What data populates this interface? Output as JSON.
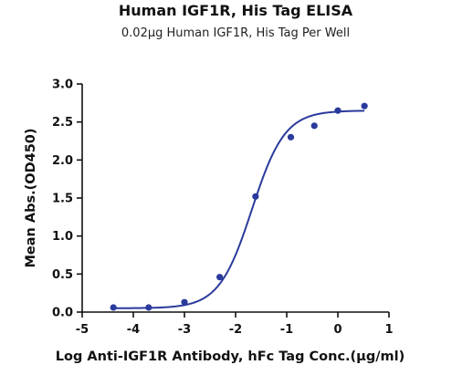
{
  "chart_data": {
    "type": "scatter",
    "title": "Human IGF1R, His Tag ELISA",
    "subtitle": "0.02µg Human IGF1R, His Tag Per Well",
    "xlabel": "Log Anti-IGF1R Antibody, hFc Tag Conc.(µg/ml)",
    "ylabel": "Mean Abs.(OD450)",
    "xlim": [
      -5,
      1
    ],
    "ylim": [
      0,
      3.0
    ],
    "x_ticks": [
      -5,
      -4,
      -3,
      -2,
      -1,
      0,
      1
    ],
    "y_ticks": [
      0.0,
      0.5,
      1.0,
      1.5,
      2.0,
      2.5,
      3.0
    ],
    "grid": false,
    "color": "#2a3a9c",
    "series": [
      {
        "x": [
          -4.39,
          -3.7,
          -3.0,
          -2.31,
          -1.61,
          -0.92,
          -0.46,
          0.0,
          0.52
        ],
        "y": [
          0.06,
          0.06,
          0.13,
          0.46,
          1.52,
          2.3,
          2.45,
          2.65,
          2.71
        ]
      }
    ],
    "fit_curve": {
      "model": "4PL",
      "bottom": 0.05,
      "top": 2.65,
      "log_ec50": -1.68,
      "hill_slope": 1.35,
      "x_range": [
        -4.39,
        0.52
      ]
    }
  }
}
